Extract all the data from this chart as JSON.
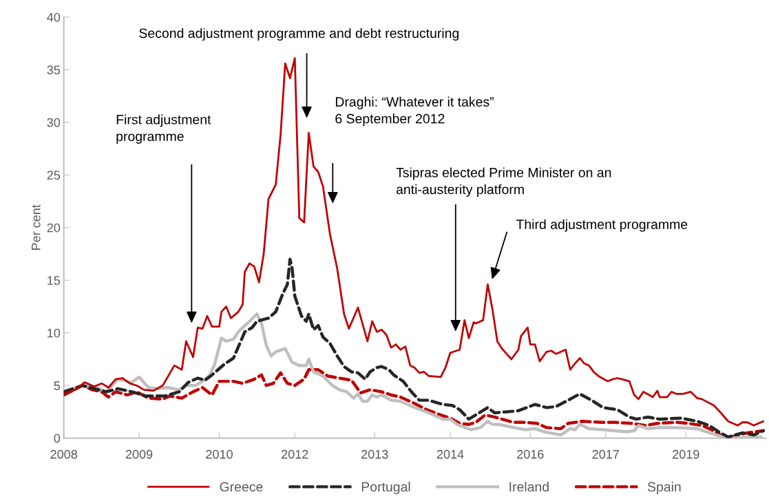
{
  "chart_data": {
    "type": "line",
    "ylabel": "Per cent",
    "xlim": [
      "2008-01",
      "2020-06"
    ],
    "xticks": [
      {
        "value": "2008-01",
        "label": "2008"
      },
      {
        "value": "2009-05",
        "label": "2009"
      },
      {
        "value": "2010-10",
        "label": "2010"
      },
      {
        "value": "2012-02",
        "label": "2012"
      },
      {
        "value": "2013-07",
        "label": "2013"
      },
      {
        "value": "2014-11",
        "label": "2014"
      },
      {
        "value": "2016-04",
        "label": "2016"
      },
      {
        "value": "2017-08",
        "label": "2017"
      },
      {
        "value": "2019-01",
        "label": "2019"
      }
    ],
    "ylim": [
      0,
      40
    ],
    "yticks": [
      0,
      5,
      10,
      15,
      20,
      25,
      30,
      35,
      40
    ],
    "grid": false,
    "legend": "bottom",
    "series": [
      {
        "name": "Greece",
        "color": "#c00000",
        "line_style": "solid",
        "x": [
          "2008-01-01",
          "2008-03-15",
          "2008-05-15",
          "2008-07-15",
          "2008-09-01",
          "2008-10-15",
          "2008-12-01",
          "2009-01-15",
          "2009-03-01",
          "2009-04-15",
          "2009-06-01",
          "2009-08-01",
          "2009-10-01",
          "2009-12-15",
          "2010-02-01",
          "2010-03-01",
          "2010-04-15",
          "2010-05-15",
          "2010-06-15",
          "2010-07-15",
          "2010-08-15",
          "2010-10-01",
          "2010-10-15",
          "2010-11-15",
          "2010-12-15",
          "2011-02-01",
          "2011-03-01",
          "2011-03-15",
          "2011-04-15",
          "2011-05-15",
          "2011-06-15",
          "2011-07-15",
          "2011-08-15",
          "2011-10-01",
          "2011-11-01",
          "2011-12-01",
          "2012-01-01",
          "2012-02-01",
          "2012-03-01",
          "2012-04-01",
          "2012-05-01",
          "2012-06-01",
          "2012-07-01",
          "2012-08-01",
          "2012-09-15",
          "2012-11-01",
          "2012-12-15",
          "2013-01-15",
          "2013-03-15",
          "2013-05-15",
          "2013-06-15",
          "2013-07-15",
          "2013-08-15",
          "2013-09-15",
          "2013-10-15",
          "2013-11-15",
          "2013-12-15",
          "2014-01-15",
          "2014-02-15",
          "2014-03-15",
          "2014-04-15",
          "2014-05-15",
          "2014-06-15",
          "2014-09-01",
          "2014-10-01",
          "2014-11-01",
          "2015-01-01",
          "2015-02-01",
          "2015-03-01",
          "2015-04-01",
          "2015-04-15",
          "2015-06-01",
          "2015-07-01",
          "2015-08-01",
          "2015-09-01",
          "2015-10-01",
          "2015-11-01",
          "2015-12-01",
          "2016-01-15",
          "2016-02-01",
          "2016-03-15",
          "2016-04-01",
          "2016-05-01",
          "2016-06-01",
          "2016-07-15",
          "2016-08-15",
          "2016-09-15",
          "2016-11-15",
          "2016-12-15",
          "2017-01-15",
          "2017-02-15",
          "2017-03-15",
          "2017-04-15",
          "2017-05-15",
          "2017-06-15",
          "2017-08-01",
          "2017-08-15",
          "2017-09-15",
          "2017-10-15",
          "2017-11-15",
          "2018-01-01",
          "2018-02-01",
          "2018-03-01",
          "2018-04-01",
          "2018-04-15",
          "2018-06-01",
          "2018-07-01",
          "2018-07-15",
          "2018-09-01",
          "2018-10-01",
          "2018-11-01",
          "2018-12-15",
          "2019-02-01",
          "2019-03-15",
          "2019-04-15",
          "2019-07-01",
          "2019-08-15",
          "2019-10-01",
          "2019-12-01",
          "2020-01-01",
          "2020-02-01",
          "2020-03-15",
          "2020-05-15"
        ],
        "values": [
          4.2,
          4.6,
          5.3,
          4.9,
          5.2,
          4.8,
          5.6,
          5.7,
          5.2,
          5.0,
          4.6,
          4.5,
          5.0,
          6.9,
          6.5,
          9.2,
          7.7,
          10.5,
          10.4,
          11.6,
          10.6,
          10.6,
          12.0,
          12.5,
          11.4,
          12.0,
          12.7,
          15.8,
          16.6,
          16.3,
          14.8,
          17.5,
          22.7,
          24.1,
          28.8,
          35.6,
          34.2,
          36.1,
          20.9,
          20.5,
          29.0,
          25.8,
          25.3,
          23.9,
          19.4,
          16.1,
          11.8,
          10.4,
          12.4,
          9.2,
          11.1,
          10.1,
          10.3,
          9.8,
          8.6,
          8.9,
          8.4,
          8.7,
          6.9,
          6.7,
          6.2,
          6.3,
          5.9,
          5.8,
          6.7,
          8.1,
          8.4,
          11.2,
          9.5,
          11.0,
          10.9,
          11.2,
          14.6,
          12.2,
          9.2,
          8.5,
          8.0,
          7.5,
          8.4,
          9.7,
          10.5,
          8.9,
          8.9,
          7.3,
          8.2,
          8.3,
          8.0,
          8.4,
          6.5,
          7.1,
          7.6,
          7.1,
          6.9,
          6.3,
          5.9,
          5.5,
          5.4,
          5.6,
          5.7,
          5.6,
          5.4,
          4.1,
          3.7,
          4.4,
          4.3,
          3.9,
          4.5,
          3.9,
          3.9,
          4.4,
          4.2,
          4.2,
          4.4,
          3.8,
          3.7,
          3.1,
          2.4,
          1.6,
          1.2,
          1.5,
          1.5,
          1.2,
          1.6
        ]
      },
      {
        "name": "Portugal",
        "color": "#262626",
        "line_style": "dashed",
        "x": [
          "2008-01-01",
          "2008-05-01",
          "2008-10-01",
          "2008-12-15",
          "2009-03-15",
          "2009-06-15",
          "2009-10-15",
          "2010-01-15",
          "2010-03-15",
          "2010-05-15",
          "2010-07-01",
          "2010-08-15",
          "2010-11-01",
          "2011-01-01",
          "2011-03-15",
          "2011-05-01",
          "2011-06-01",
          "2011-08-15",
          "2011-10-01",
          "2011-11-15",
          "2011-12-15",
          "2012-01-01",
          "2012-01-15",
          "2012-02-01",
          "2012-03-15",
          "2012-04-15",
          "2012-05-01",
          "2012-06-01",
          "2012-07-01",
          "2012-08-01",
          "2012-09-15",
          "2012-11-01",
          "2012-12-15",
          "2013-02-01",
          "2013-03-15",
          "2013-05-01",
          "2013-06-01",
          "2013-07-15",
          "2013-08-15",
          "2013-10-01",
          "2013-11-01",
          "2014-01-01",
          "2014-03-01",
          "2014-04-15",
          "2014-06-15",
          "2014-09-15",
          "2014-11-15",
          "2015-01-01",
          "2015-03-01",
          "2015-04-15",
          "2015-07-01",
          "2015-08-15",
          "2015-11-01",
          "2016-01-15",
          "2016-05-01",
          "2016-07-15",
          "2016-09-15",
          "2016-12-01",
          "2017-02-15",
          "2017-05-01",
          "2017-07-15",
          "2017-10-15",
          "2018-01-01",
          "2018-02-15",
          "2018-05-01",
          "2018-07-15",
          "2018-12-01",
          "2019-03-15",
          "2019-06-01",
          "2019-08-01",
          "2019-10-01",
          "2020-01-01",
          "2020-03-15",
          "2020-05-15"
        ],
        "values": [
          4.4,
          5.0,
          4.4,
          4.7,
          4.4,
          4.0,
          4.0,
          4.4,
          5.3,
          5.7,
          5.5,
          6.0,
          7.0,
          7.6,
          10.1,
          10.5,
          11.1,
          11.4,
          12.0,
          13.7,
          14.6,
          17.0,
          16.1,
          13.5,
          11.6,
          11.1,
          11.8,
          10.3,
          10.7,
          9.6,
          9.0,
          7.8,
          6.8,
          6.3,
          6.2,
          5.6,
          6.3,
          6.7,
          6.8,
          6.5,
          6.0,
          5.4,
          4.3,
          3.6,
          3.6,
          3.2,
          3.1,
          2.7,
          1.8,
          2.2,
          2.9,
          2.4,
          2.5,
          2.6,
          3.2,
          2.9,
          3.0,
          3.6,
          4.2,
          3.6,
          2.9,
          2.7,
          2.0,
          1.8,
          2.0,
          1.8,
          1.9,
          1.6,
          1.2,
          0.6,
          0.1,
          0.5,
          0.3,
          0.7
        ]
      },
      {
        "name": "Ireland",
        "color": "#bfbfbf",
        "line_style": "solid",
        "x": [
          "2008-01-01",
          "2008-05-01",
          "2008-08-01",
          "2008-10-01",
          "2008-12-15",
          "2009-03-15",
          "2009-05-01",
          "2009-07-01",
          "2009-09-01",
          "2009-11-01",
          "2010-01-15",
          "2010-03-01",
          "2010-05-01",
          "2010-06-15",
          "2010-08-01",
          "2010-09-01",
          "2010-10-15",
          "2010-11-15",
          "2011-01-01",
          "2011-02-01",
          "2011-04-01",
          "2011-06-01",
          "2011-07-01",
          "2011-08-01",
          "2011-09-01",
          "2011-10-01",
          "2011-12-01",
          "2012-01-15",
          "2012-03-01",
          "2012-04-15",
          "2012-05-01",
          "2012-06-01",
          "2012-08-01",
          "2012-10-01",
          "2012-11-15",
          "2013-01-01",
          "2013-02-15",
          "2013-03-15",
          "2013-04-15",
          "2013-05-15",
          "2013-06-15",
          "2013-07-15",
          "2013-08-15",
          "2013-10-15",
          "2013-12-15",
          "2014-03-01",
          "2014-06-15",
          "2014-09-15",
          "2014-11-01",
          "2014-12-15",
          "2015-03-15",
          "2015-05-15",
          "2015-07-01",
          "2015-08-01",
          "2015-09-15",
          "2015-12-15",
          "2016-03-01",
          "2016-05-01",
          "2016-07-01",
          "2016-10-15",
          "2016-12-15",
          "2017-01-15",
          "2017-02-15",
          "2017-04-15",
          "2017-07-15",
          "2017-10-01",
          "2017-12-15",
          "2018-02-01",
          "2018-03-01",
          "2018-05-01",
          "2018-07-15",
          "2018-11-01",
          "2019-03-15",
          "2019-05-15",
          "2019-07-15",
          "2019-10-01",
          "2020-05-01"
        ],
        "values": [
          4.4,
          5.0,
          4.8,
          4.4,
          5.6,
          5.3,
          5.8,
          4.8,
          4.7,
          4.8,
          4.6,
          5.0,
          5.0,
          5.4,
          6.0,
          7.0,
          9.5,
          9.2,
          9.4,
          10.1,
          10.9,
          11.8,
          10.9,
          8.8,
          7.8,
          8.2,
          8.5,
          7.2,
          6.9,
          6.9,
          7.5,
          6.3,
          5.9,
          5.0,
          4.6,
          4.4,
          3.8,
          4.2,
          3.5,
          3.5,
          4.1,
          3.9,
          4.1,
          3.6,
          3.5,
          3.0,
          2.4,
          1.8,
          1.8,
          1.3,
          0.8,
          1.0,
          1.6,
          1.3,
          1.3,
          1.0,
          0.8,
          0.9,
          0.6,
          0.3,
          0.9,
          0.8,
          1.3,
          0.9,
          0.8,
          0.7,
          0.6,
          0.7,
          1.2,
          0.9,
          1.0,
          1.0,
          0.9,
          0.6,
          0.3,
          0,
          0.1
        ]
      },
      {
        "name": "Spain",
        "color": "#c00000",
        "line_style": "dashed",
        "x": [
          "2008-01-01",
          "2008-05-01",
          "2008-07-01",
          "2008-09-01",
          "2008-10-15",
          "2008-12-01",
          "2009-02-15",
          "2009-04-15",
          "2009-07-01",
          "2009-10-01",
          "2009-11-15",
          "2010-02-01",
          "2010-04-15",
          "2010-06-15",
          "2010-08-15",
          "2010-10-01",
          "2011-01-01",
          "2011-03-01",
          "2011-05-15",
          "2011-07-01",
          "2011-08-01",
          "2011-09-15",
          "2011-11-01",
          "2011-12-15",
          "2012-02-01",
          "2012-04-01",
          "2012-05-01",
          "2012-07-01",
          "2012-09-01",
          "2012-11-15",
          "2013-02-01",
          "2013-04-01",
          "2013-06-01",
          "2013-08-15",
          "2013-10-15",
          "2013-12-15",
          "2014-03-15",
          "2014-06-01",
          "2014-09-01",
          "2014-11-01",
          "2015-01-01",
          "2015-03-01",
          "2015-04-15",
          "2015-06-15",
          "2015-08-15",
          "2015-10-01",
          "2015-12-15",
          "2016-03-01",
          "2016-05-15",
          "2016-07-15",
          "2016-10-15",
          "2016-12-01",
          "2017-03-01",
          "2017-07-01",
          "2017-10-01",
          "2018-01-15",
          "2018-04-15",
          "2018-07-01",
          "2018-11-01",
          "2019-01-15",
          "2019-04-15",
          "2019-06-15",
          "2019-08-15",
          "2019-10-15",
          "2020-02-01",
          "2020-05-15"
        ],
        "values": [
          4.1,
          5.0,
          4.6,
          4.4,
          3.9,
          4.4,
          4.1,
          4.4,
          3.8,
          3.7,
          4.0,
          3.8,
          4.4,
          4.8,
          4.1,
          5.4,
          5.4,
          5.2,
          5.6,
          6.0,
          5.0,
          5.2,
          6.2,
          5.2,
          5.0,
          5.6,
          6.5,
          6.5,
          5.9,
          5.7,
          5.5,
          4.3,
          4.6,
          4.4,
          4.1,
          3.9,
          3.3,
          2.7,
          2.2,
          1.9,
          1.4,
          1.3,
          1.5,
          2.2,
          2.0,
          1.8,
          1.5,
          1.5,
          1.4,
          1.0,
          0.9,
          1.4,
          1.6,
          1.5,
          1.5,
          1.4,
          1.2,
          1.4,
          1.5,
          1.4,
          1.2,
          0.8,
          0.3,
          0.1,
          0.5,
          0.7
        ]
      }
    ],
    "annotations": [
      "First adjustment\nprogramme",
      "Second adjustment programme and debt restructuring",
      "Draghi: “Whatever it takes”\n6 September 2012",
      "Tsipras elected Prime Minister on an\nanti-austerity platform",
      "Third adjustment programme"
    ]
  }
}
